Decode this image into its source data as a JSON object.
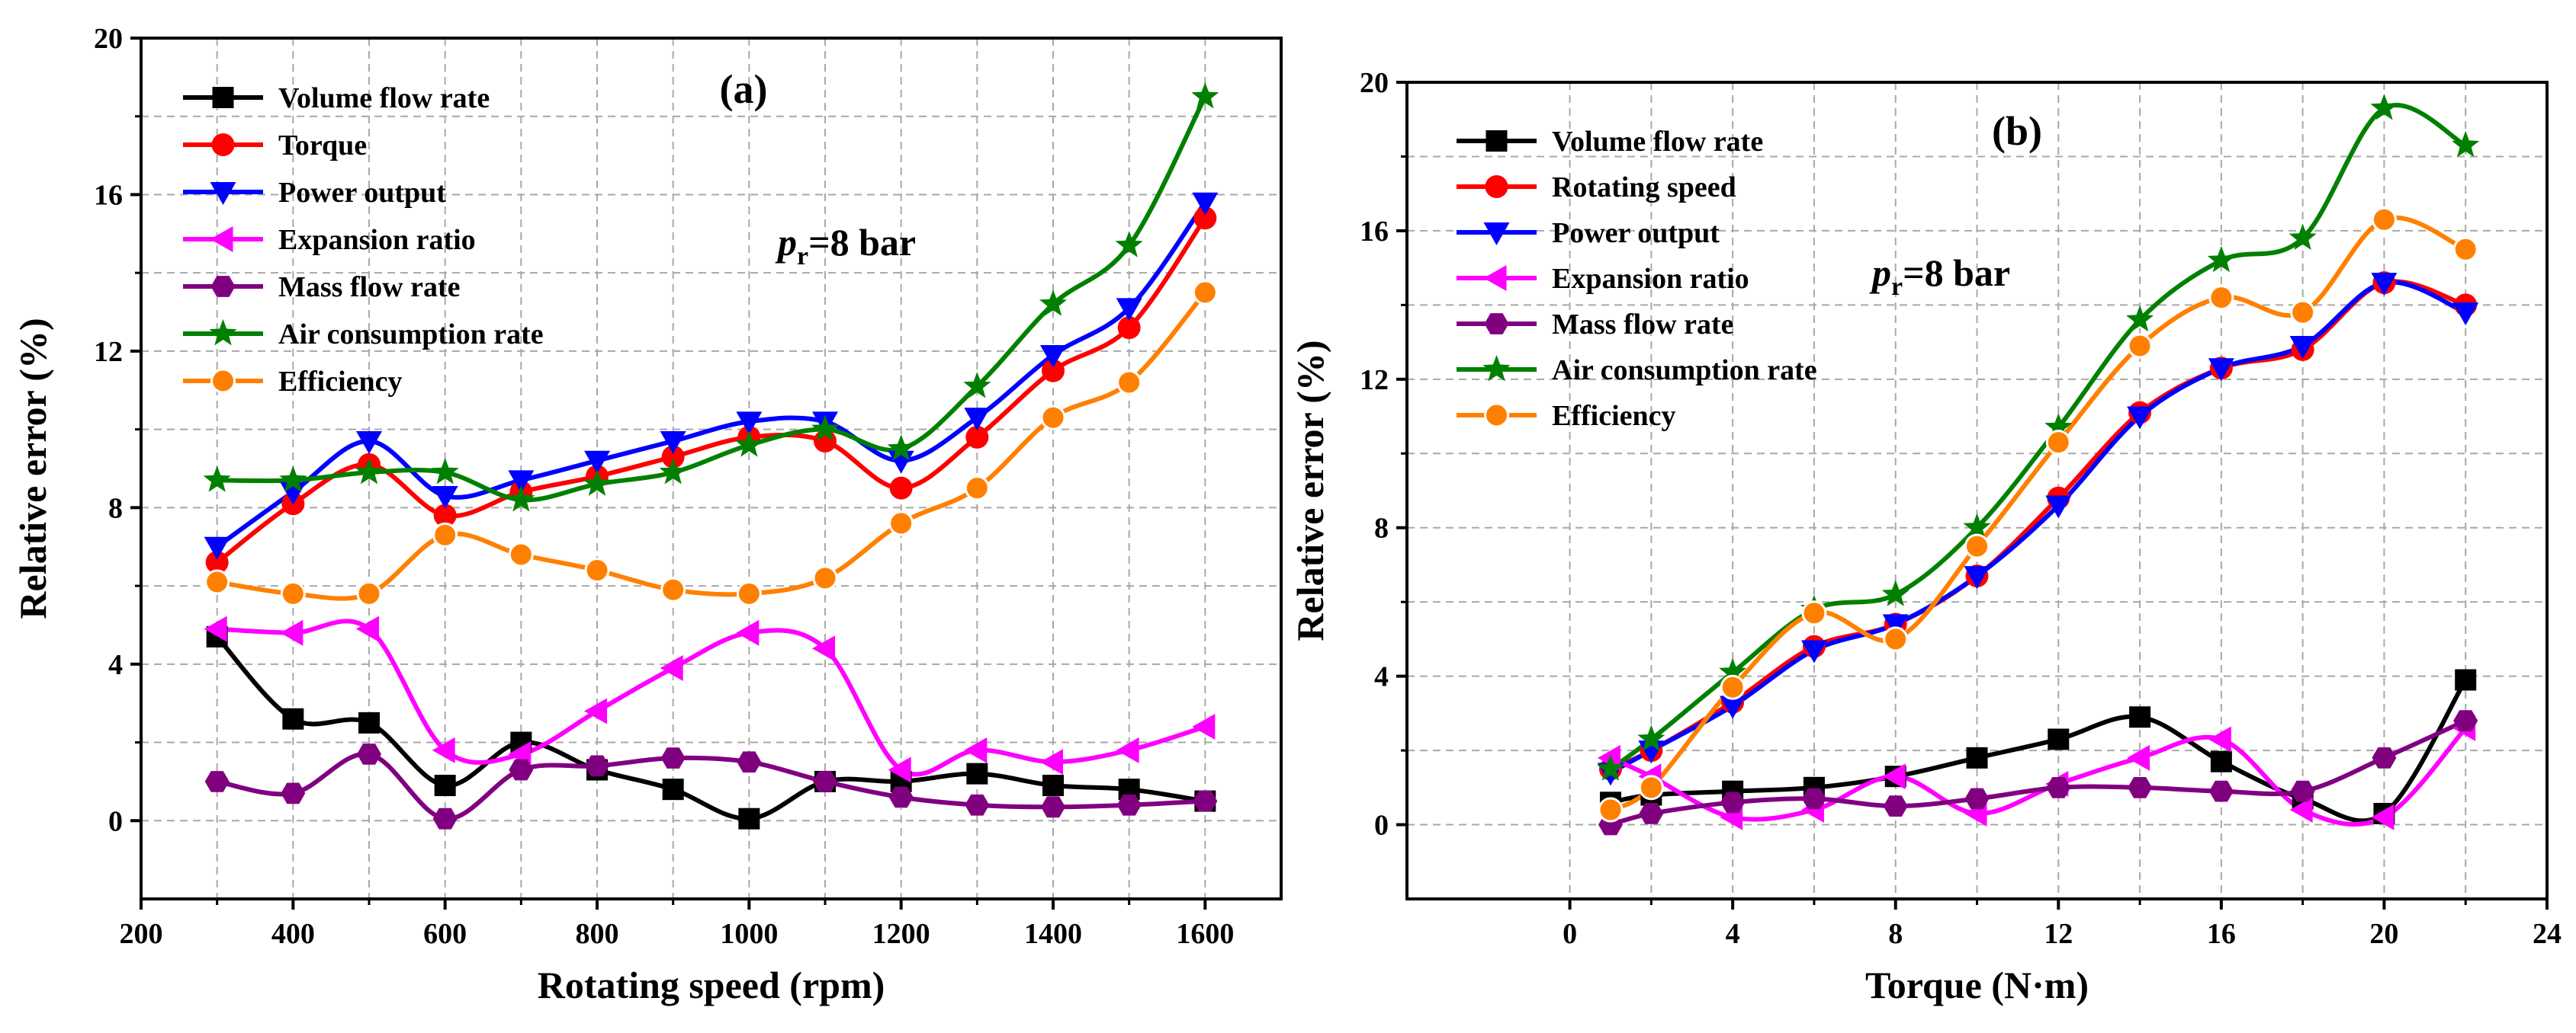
{
  "chart_data": [
    {
      "type": "line",
      "panel_label": "(a)",
      "annotation": {
        "symbol": "p",
        "subscript": "r",
        "text": "=8 bar"
      },
      "xlabel": "Rotating speed (rpm)",
      "ylabel": "Relative error (%)",
      "xlim": [
        200,
        1700
      ],
      "ylim": [
        -2,
        20
      ],
      "xticks": [
        200,
        400,
        600,
        800,
        1000,
        1200,
        1400,
        1600
      ],
      "yticks": [
        0,
        4,
        8,
        12,
        16,
        20
      ],
      "grid": true,
      "legend_position": "top-left",
      "x": [
        300,
        400,
        500,
        600,
        700,
        800,
        900,
        1000,
        1100,
        1200,
        1300,
        1400,
        1500,
        1600
      ],
      "series": [
        {
          "name": "Volume flow rate",
          "color": "#000000",
          "marker": "square",
          "values": [
            4.7,
            2.6,
            2.5,
            0.9,
            2.0,
            1.3,
            0.8,
            0.05,
            1.0,
            1.0,
            1.2,
            0.9,
            0.8,
            0.5
          ]
        },
        {
          "name": "Torque",
          "color": "#ff0000",
          "marker": "circle",
          "values": [
            6.6,
            8.1,
            9.1,
            7.8,
            8.4,
            8.8,
            9.3,
            9.8,
            9.7,
            8.5,
            9.8,
            11.5,
            12.6,
            15.4
          ]
        },
        {
          "name": "Power output",
          "color": "#0000ff",
          "marker": "triangle-down",
          "values": [
            7.0,
            8.4,
            9.7,
            8.3,
            8.7,
            9.2,
            9.7,
            10.2,
            10.2,
            9.2,
            10.3,
            11.9,
            13.1,
            15.8
          ]
        },
        {
          "name": "Expansion ratio",
          "color": "#ff00ff",
          "marker": "triangle-left",
          "values": [
            4.9,
            4.8,
            4.9,
            1.8,
            1.7,
            2.8,
            3.9,
            4.8,
            4.4,
            1.3,
            1.8,
            1.5,
            1.8,
            2.4
          ]
        },
        {
          "name": "Mass flow rate",
          "color": "#800080",
          "marker": "hexagon",
          "values": [
            1.0,
            0.7,
            1.7,
            0.05,
            1.3,
            1.4,
            1.6,
            1.5,
            1.0,
            0.6,
            0.4,
            0.35,
            0.4,
            0.5
          ]
        },
        {
          "name": "Air consumption rate",
          "color": "#008000",
          "marker": "star",
          "values": [
            8.7,
            8.7,
            8.9,
            8.9,
            8.2,
            8.6,
            8.9,
            9.6,
            10.0,
            9.5,
            11.1,
            13.2,
            14.7,
            18.5
          ]
        },
        {
          "name": "Efficiency",
          "color": "#ff8000",
          "marker": "circle-open",
          "values": [
            6.1,
            5.8,
            5.8,
            7.3,
            6.8,
            6.4,
            5.9,
            5.8,
            6.2,
            7.6,
            8.5,
            10.3,
            11.2,
            13.5
          ]
        }
      ]
    },
    {
      "type": "line",
      "panel_label": "(b)",
      "annotation": {
        "symbol": "p",
        "subscript": "r",
        "text": "=8 bar"
      },
      "xlabel": "Torque (N·m)",
      "ylabel": "Relative error (%)",
      "xlim": [
        -4,
        24
      ],
      "ylim": [
        -2,
        20
      ],
      "xticks": [
        0,
        4,
        8,
        12,
        16,
        20,
        24
      ],
      "yticks": [
        0,
        4,
        8,
        12,
        16,
        20
      ],
      "grid": true,
      "legend_position": "top-left",
      "x": [
        1,
        2,
        4,
        6,
        8,
        10,
        12,
        14,
        16,
        18,
        20,
        22
      ],
      "series": [
        {
          "name": "Volume flow rate",
          "color": "#000000",
          "marker": "square",
          "values": [
            0.6,
            0.8,
            0.9,
            1.0,
            1.3,
            1.8,
            2.3,
            2.9,
            1.7,
            0.7,
            0.3,
            3.9
          ]
        },
        {
          "name": "Rotating speed",
          "color": "#ff0000",
          "marker": "circle",
          "values": [
            1.5,
            2.0,
            3.3,
            4.8,
            5.4,
            6.7,
            8.8,
            11.1,
            12.3,
            12.8,
            14.6,
            14.0
          ]
        },
        {
          "name": "Power output",
          "color": "#0000ff",
          "marker": "triangle-down",
          "values": [
            1.4,
            2.0,
            3.2,
            4.7,
            5.4,
            6.7,
            8.6,
            11.0,
            12.3,
            12.9,
            14.6,
            13.8
          ]
        },
        {
          "name": "Expansion ratio",
          "color": "#ff00ff",
          "marker": "triangle-left",
          "values": [
            1.8,
            1.3,
            0.2,
            0.4,
            1.3,
            0.3,
            1.1,
            1.8,
            2.3,
            0.4,
            0.2,
            2.6
          ]
        },
        {
          "name": "Mass flow rate",
          "color": "#800080",
          "marker": "hexagon",
          "values": [
            0.0,
            0.3,
            0.6,
            0.7,
            0.5,
            0.7,
            1.0,
            1.0,
            0.9,
            0.9,
            1.8,
            2.8
          ]
        },
        {
          "name": "Air consumption rate",
          "color": "#008000",
          "marker": "star",
          "values": [
            1.5,
            2.3,
            4.1,
            5.8,
            6.2,
            8.0,
            10.7,
            13.6,
            15.2,
            15.8,
            19.3,
            18.3
          ]
        },
        {
          "name": "Efficiency",
          "color": "#ff8000",
          "marker": "circle-open",
          "values": [
            0.4,
            1.0,
            3.7,
            5.7,
            5.0,
            7.5,
            10.3,
            12.9,
            14.2,
            13.8,
            16.3,
            15.5
          ]
        }
      ]
    }
  ]
}
